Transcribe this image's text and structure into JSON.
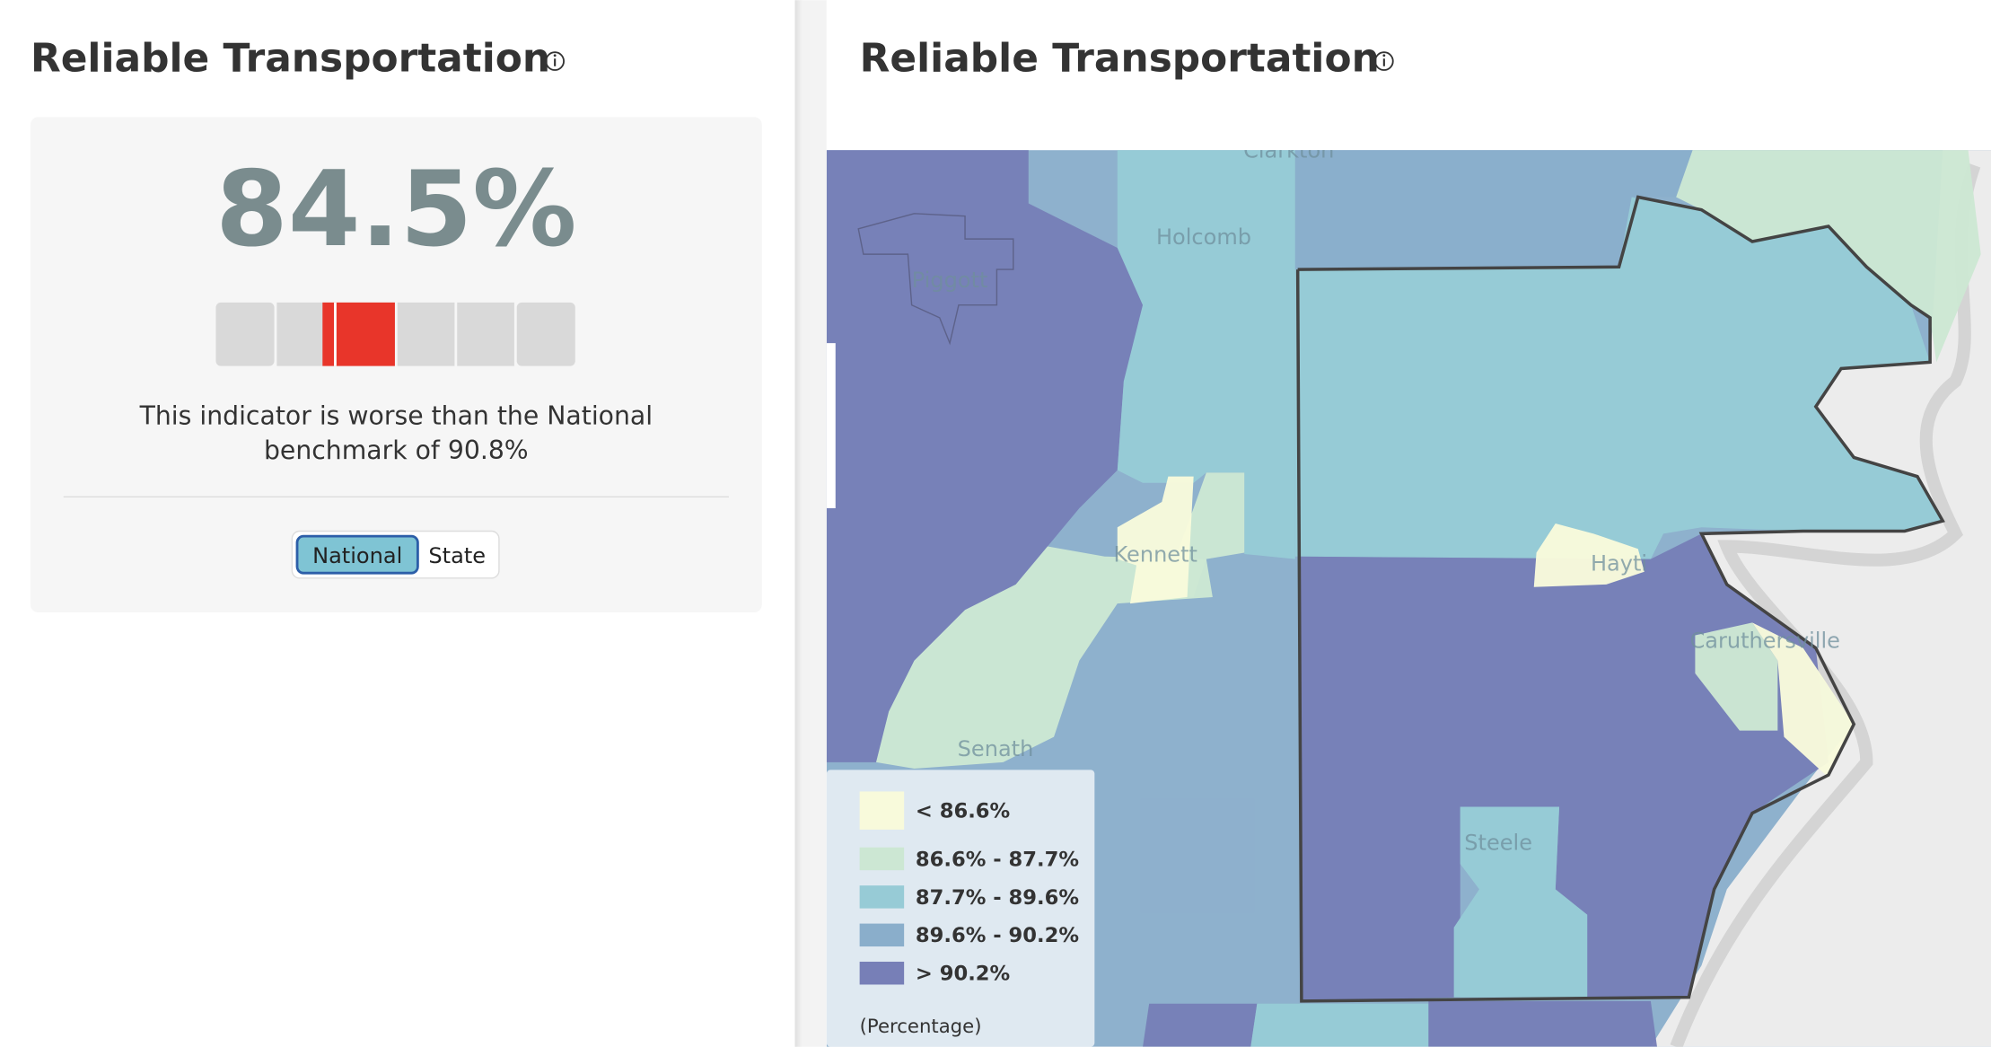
{
  "left_panel": {
    "title": "Reliable Transportation",
    "value": "84.5%",
    "description_lines": [
      "This indicator is worse than the National",
      "benchmark of 90.8%"
    ],
    "toggle": {
      "options": [
        "National",
        "State"
      ],
      "selected": 0
    }
  },
  "right_panel": {
    "title": "Reliable Transportation",
    "places": [
      "Clarkton",
      "Holcomb",
      "Piggott",
      "Kennett",
      "Hayti",
      "Caruthersville",
      "Senath",
      "Steele"
    ],
    "legend": {
      "items": [
        {
          "label": "< 86.6%",
          "color": "#f8fadb"
        },
        {
          "label": "86.6% - 87.7%",
          "color": "#cce7d3"
        },
        {
          "label": "87.7% - 89.6%",
          "color": "#97cbd6"
        },
        {
          "label": "89.6% - 90.2%",
          "color": "#8aaecb"
        },
        {
          "label": "> 90.2%",
          "color": "#777fb7"
        }
      ],
      "unit": "(Percentage)"
    }
  }
}
